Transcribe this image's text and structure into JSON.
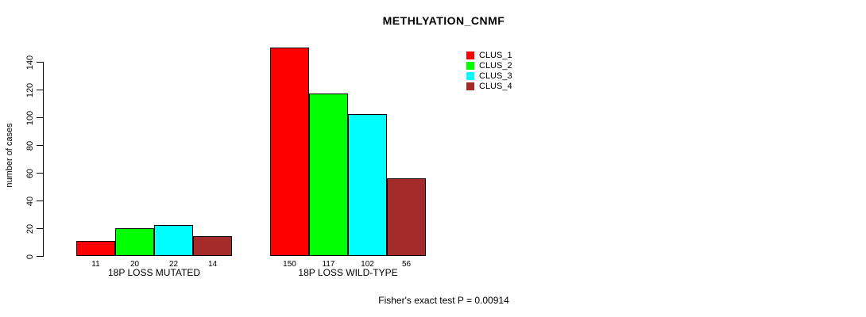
{
  "chart_data": {
    "type": "bar",
    "title": "METHLYATION_CNMF",
    "ylabel": "number of cases",
    "xlabel": "",
    "groups": [
      "18P LOSS MUTATED",
      "18P LOSS WILD-TYPE"
    ],
    "series": [
      {
        "name": "CLUS_1",
        "color": "#FF0000",
        "values": [
          11,
          150
        ]
      },
      {
        "name": "CLUS_2",
        "color": "#00FF00",
        "values": [
          20,
          117
        ]
      },
      {
        "name": "CLUS_3",
        "color": "#00FFFF",
        "values": [
          22,
          102
        ]
      },
      {
        "name": "CLUS_4",
        "color": "#A52A2A",
        "values": [
          14,
          56
        ]
      }
    ],
    "yticks": [
      0,
      20,
      40,
      60,
      80,
      100,
      120,
      140
    ],
    "ylim": [
      0,
      150
    ],
    "bar_value_labels": true,
    "grid": false,
    "legend_position": "top-right",
    "annotation": "Fisher's exact test P = 0.00914"
  }
}
